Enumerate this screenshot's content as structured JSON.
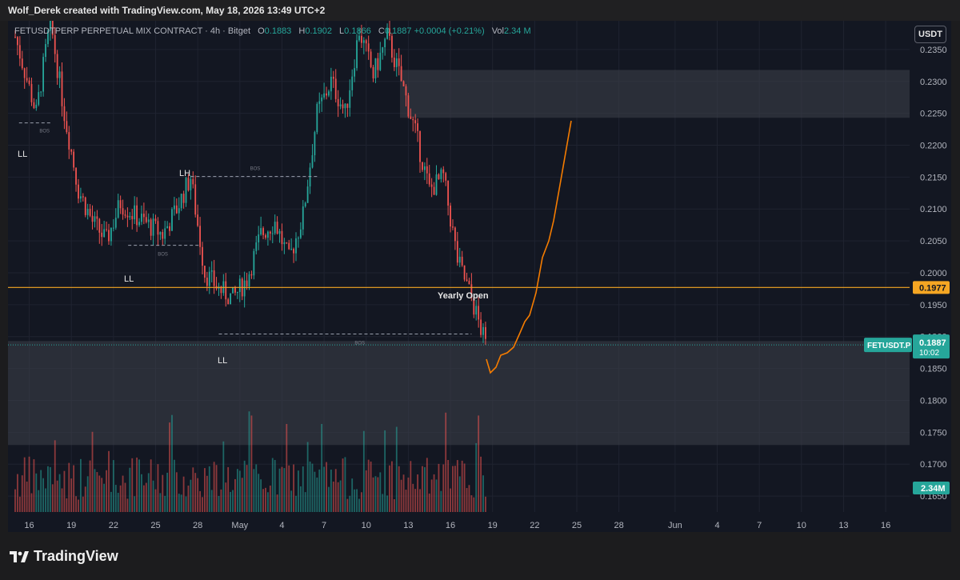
{
  "header": {
    "credit": "Wolf_Derek created with TradingView.com, May 18, 2026 13:49 UTC+2"
  },
  "legend": {
    "symbol": "FETUSDTPERP PERPETUAL MIX CONTRACT · 4h · Bitget",
    "o_label": "O",
    "o_val": "0.1883",
    "h_label": "H",
    "h_val": "0.1902",
    "l_label": "L",
    "l_val": "0.1866",
    "c_label": "C",
    "c_val": "0.1887",
    "chg": "+0.0004 (+0.21%)",
    "vol_label": "Vol",
    "vol_val": "2.34 M"
  },
  "currency_button": "USDT",
  "footer": {
    "brand": "TradingView"
  },
  "colors": {
    "up": "#26a69a",
    "down": "#ef5350",
    "bg": "#131722",
    "projection": "#f57c00",
    "level": "#f5a623",
    "zone": "#3a3d48"
  },
  "chart_data": {
    "type": "candlestick",
    "timeframe": "4h",
    "symbol": "FETUSDT.P",
    "y_axis": {
      "ticks": [
        "0.2350",
        "0.2300",
        "0.2250",
        "0.2200",
        "0.2150",
        "0.2100",
        "0.2050",
        "0.2000",
        "0.1950",
        "0.1900",
        "0.1850",
        "0.1800",
        "0.1750",
        "0.1700",
        "0.1650"
      ],
      "range": [
        0.1625,
        0.2395
      ]
    },
    "x_axis": {
      "ticks": [
        "16",
        "19",
        "22",
        "25",
        "28",
        "May",
        "4",
        "7",
        "10",
        "13",
        "16",
        "19",
        "22",
        "25",
        "28",
        "Jun",
        "4",
        "7",
        "10",
        "13",
        "16"
      ]
    },
    "price_path": [
      [
        "Apr 15",
        0.233
      ],
      [
        "Apr 16",
        0.225
      ],
      [
        "Apr 17",
        0.2395
      ],
      [
        "Apr 18",
        0.225
      ],
      [
        "Apr 19",
        0.213
      ],
      [
        "Apr 20",
        0.208
      ],
      [
        "Apr 21",
        0.205
      ],
      [
        "Apr 22",
        0.211
      ],
      [
        "Apr 23",
        0.209
      ],
      [
        "Apr 25",
        0.206
      ],
      [
        "Apr 26",
        0.21
      ],
      [
        "Apr 27",
        0.215
      ],
      [
        "Apr 28",
        0.2
      ],
      [
        "Apr 29",
        0.1975
      ],
      [
        "Apr 30",
        0.196
      ],
      [
        "May 1",
        0.199
      ],
      [
        "May 2",
        0.206
      ],
      [
        "May 3",
        0.208
      ],
      [
        "May 4",
        0.202
      ],
      [
        "May 5",
        0.209
      ],
      [
        "May 6",
        0.225
      ],
      [
        "May 7",
        0.23
      ],
      [
        "May 8",
        0.225
      ],
      [
        "May 9",
        0.238
      ],
      [
        "May 10",
        0.231
      ],
      [
        "May 11",
        0.237
      ],
      [
        "May 12",
        0.23
      ],
      [
        "May 13",
        0.222
      ],
      [
        "May 14",
        0.213
      ],
      [
        "May 15",
        0.215
      ],
      [
        "May 16",
        0.202
      ],
      [
        "May 17",
        0.196
      ],
      [
        "May 18",
        0.1887
      ]
    ],
    "projection_path": [
      [
        "May 18",
        0.1887
      ],
      [
        "May 19",
        0.1885
      ],
      [
        "May 20",
        0.1905
      ],
      [
        "May 21",
        0.1945
      ],
      [
        "May 22",
        0.204
      ],
      [
        "May 24",
        0.226
      ]
    ],
    "levels": [
      {
        "name": "Yearly Open",
        "price": 0.1977,
        "label": "0.1977"
      }
    ],
    "zones": [
      {
        "from": 0.2243,
        "to": 0.2318
      },
      {
        "from": 0.173,
        "to": 0.1893
      }
    ],
    "annotations": [
      {
        "text": "LL",
        "date": "Apr 15",
        "price": 0.2208
      },
      {
        "text": "LH",
        "date": "Apr 27",
        "price": 0.2175
      },
      {
        "text": "LL",
        "date": "Apr 22",
        "price": 0.201
      },
      {
        "text": "LL",
        "date": "Apr 29",
        "price": 0.188
      },
      {
        "text": "Yearly Open",
        "date": "May 16",
        "price": 0.1982
      }
    ],
    "bos_label": "BOS",
    "last_price": {
      "symbol": "FETUSDT.P",
      "price": "0.1887",
      "countdown": "10:02"
    },
    "volume_label": "2.34M"
  }
}
